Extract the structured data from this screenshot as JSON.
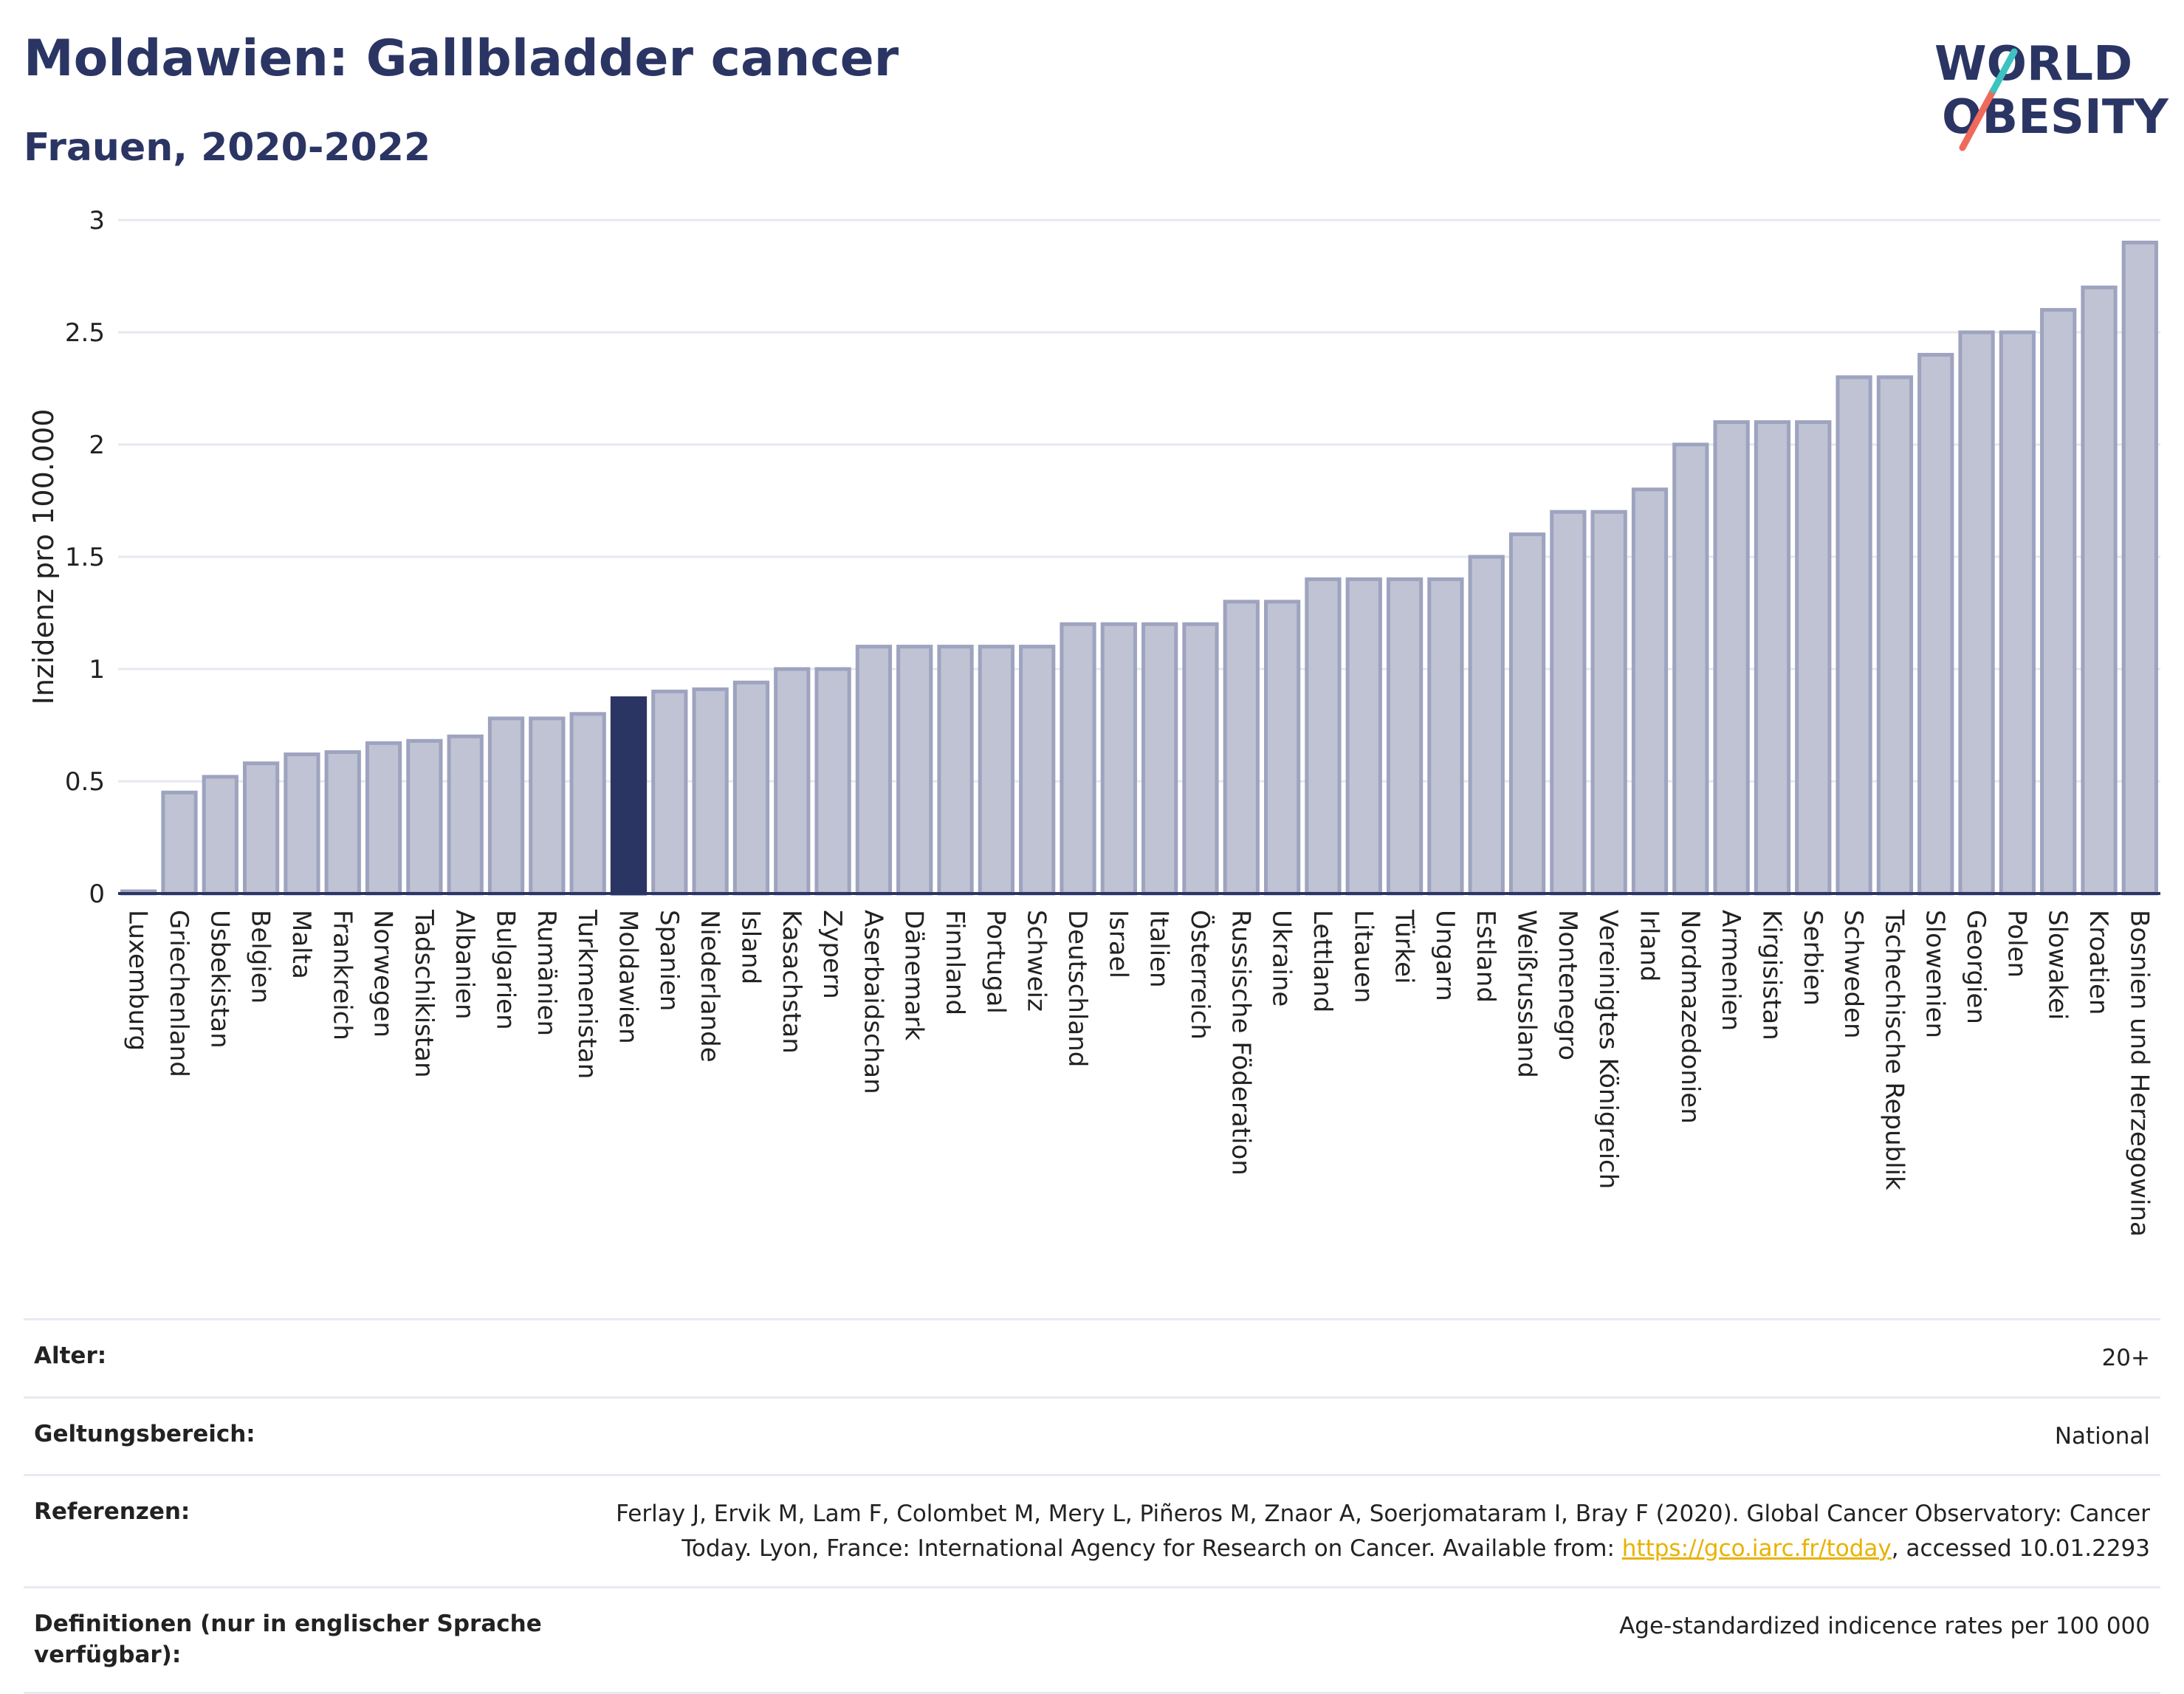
{
  "header": {
    "title": "Moldawien: Gallbladder cancer",
    "subtitle": "Frauen, 2020-2022"
  },
  "logo": {
    "line1": "WORLD",
    "line2": "OBESITY",
    "text_color": "#2b3564",
    "slash_colors": [
      "#ef6a5b",
      "#3cc3c0"
    ]
  },
  "colors": {
    "bar_default": "#bfc3d3",
    "bar_stroke": "#9ea3bf",
    "bar_highlight": "#2b3564",
    "axis": "#2b3564",
    "grid": "#e6e8ef"
  },
  "chart_data": {
    "type": "bar",
    "ylabel": "Inzidenz pro 100.000",
    "ylim": [
      0,
      3
    ],
    "yticks": [
      0,
      0.5,
      1,
      1.5,
      2,
      2.5,
      3
    ],
    "ytick_labels": [
      "0",
      "0.5",
      "1",
      "1.5",
      "2",
      "2.5",
      "3"
    ],
    "grid": true,
    "highlight": "Moldawien",
    "categories": [
      "Luxemburg",
      "Griechenland",
      "Usbekistan",
      "Belgien",
      "Malta",
      "Frankreich",
      "Norwegen",
      "Tadschikistan",
      "Albanien",
      "Bulgarien",
      "Rumänien",
      "Turkmenistan",
      "Moldawien",
      "Spanien",
      "Niederlande",
      "Island",
      "Kasachstan",
      "Zypern",
      "Aserbaidschan",
      "Dänemark",
      "Finnland",
      "Portugal",
      "Schweiz",
      "Deutschland",
      "Israel",
      "Italien",
      "Österreich",
      "Russische Föderation",
      "Ukraine",
      "Lettland",
      "Litauen",
      "Türkei",
      "Ungarn",
      "Estland",
      "Weißrussland",
      "Montenegro",
      "Vereinigtes Königreich",
      "Irland",
      "Nordmazedonien",
      "Armenien",
      "Kirgisistan",
      "Serbien",
      "Schweden",
      "Tschechische Republik",
      "Slowenien",
      "Georgien",
      "Polen",
      "Slowakei",
      "Kroatien",
      "Bosnien und Herzegowina"
    ],
    "values": [
      0.01,
      0.45,
      0.52,
      0.58,
      0.62,
      0.63,
      0.67,
      0.68,
      0.7,
      0.78,
      0.78,
      0.8,
      0.87,
      0.9,
      0.91,
      0.94,
      1.0,
      1.0,
      1.1,
      1.1,
      1.1,
      1.1,
      1.1,
      1.2,
      1.2,
      1.2,
      1.2,
      1.3,
      1.3,
      1.4,
      1.4,
      1.4,
      1.4,
      1.5,
      1.6,
      1.7,
      1.7,
      1.8,
      2.0,
      2.1,
      2.1,
      2.1,
      2.3,
      2.3,
      2.4,
      2.5,
      2.5,
      2.6,
      2.7,
      2.9
    ]
  },
  "meta": {
    "age_label": "Alter:",
    "age_value": "20+",
    "scope_label": "Geltungsbereich:",
    "scope_value": "National",
    "references_label": "Referenzen:",
    "references_text": "Ferlay J, Ervik M, Lam F, Colombet M, Mery L, Piñeros M, Znaor A, Soerjomataram I, Bray F (2020). Global Cancer Observatory: Cancer Today. Lyon, France: International Agency for Research on Cancer. Available from: ",
    "references_link": "https://gco.iarc.fr/today",
    "references_suffix": ", accessed 10.01.2293",
    "definitions_label": "Definitionen (nur in englischer Sprache verfügbar):",
    "definitions_value": "Age-standardized indicence rates per 100 000"
  }
}
